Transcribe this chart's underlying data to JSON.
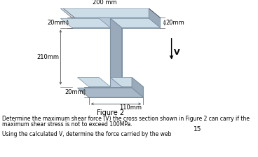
{
  "title": "Figure 2",
  "label_200mm": "200 mm",
  "label_20mm_top_left": "20mm",
  "label_20mm_right": "20mm",
  "label_210mm": "210mm",
  "label_20mm_bottom": "20mm",
  "label_110mm": "110mm",
  "label_V": "V",
  "question_text1": "Determine the maximum shear force (V) the cross section shown in Figure 2 can carry if the",
  "question_text2": "maximum shear stress is not to exceed 100MPa.",
  "question_text3": "Using the calculated V, determine the force carried by the web",
  "page_number": "15",
  "bg_color": "#ffffff",
  "text_color": "#000000",
  "dim_color": "#555555",
  "beam_front": "#b8c8d8",
  "beam_top": "#ccdde8",
  "beam_right": "#9aaabb",
  "beam_edge": "#7a8fa0"
}
